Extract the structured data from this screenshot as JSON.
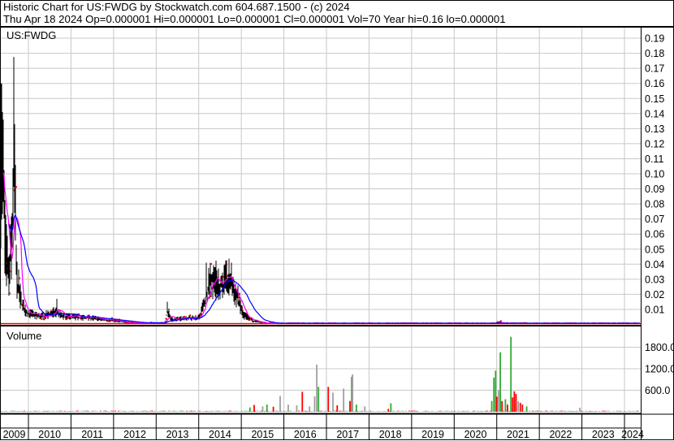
{
  "header": {
    "title": "Historic Chart for US:FWDG by Stockwatch.com 604.687.1500 - (c) 2024",
    "quote": "Thu Apr 18 2024   Op=0.000001  Hi=0.000001  Lo=0.000001  Cl=0.000001  Vol=70   Year hi=0.16   lo=0.000001"
  },
  "colors": {
    "bars": "#000000",
    "close_marks": "#ff0000",
    "ma_short": "#ff00ff",
    "ma_long": "#0000ff",
    "vol_up": "#33aa33",
    "vol_down": "#ff0000",
    "vol_flat": "#a0a0a0",
    "grid": "#c8c8c8"
  },
  "chart_data": [
    {
      "type": "line",
      "title": "US:FWDG",
      "xlim": [
        2009.33,
        2024.36
      ],
      "ylim": [
        0,
        0.2
      ],
      "grid": true,
      "y_ticks": [
        "0.01",
        "0.02",
        "0.03",
        "0.04",
        "0.05",
        "0.06",
        "0.07",
        "0.08",
        "0.09",
        "0.10",
        "0.11",
        "0.12",
        "0.13",
        "0.14",
        "0.15",
        "0.16",
        "0.17",
        "0.18",
        "0.19"
      ],
      "close": [
        [
          2009.33,
          0.08
        ],
        [
          2009.4,
          0.1
        ],
        [
          2009.45,
          0.05
        ],
        [
          2009.55,
          0.03
        ],
        [
          2009.62,
          0.06
        ],
        [
          2009.66,
          0.12
        ],
        [
          2009.72,
          0.03
        ],
        [
          2009.85,
          0.012
        ],
        [
          2010.0,
          0.007
        ],
        [
          2010.3,
          0.005
        ],
        [
          2010.67,
          0.008
        ],
        [
          2010.8,
          0.005
        ],
        [
          2011.5,
          0.004
        ],
        [
          2012.0,
          0.0025
        ],
        [
          2012.5,
          0.001
        ],
        [
          2013.2,
          0.001
        ],
        [
          2013.27,
          0.009
        ],
        [
          2013.35,
          0.003
        ],
        [
          2013.7,
          0.004
        ],
        [
          2014.0,
          0.004
        ],
        [
          2014.15,
          0.015
        ],
        [
          2014.25,
          0.03
        ],
        [
          2014.5,
          0.025
        ],
        [
          2014.75,
          0.028
        ],
        [
          2014.9,
          0.018
        ],
        [
          2015.05,
          0.006
        ],
        [
          2015.3,
          0.002
        ],
        [
          2015.6,
          0.0008
        ],
        [
          2016.0,
          0.0004
        ],
        [
          2020.95,
          0.0004
        ],
        [
          2021.0,
          0.0015
        ],
        [
          2021.15,
          0.0008
        ],
        [
          2024.36,
          1e-06
        ]
      ],
      "spikes": [
        [
          2009.36,
          0.16
        ],
        [
          2009.66,
          0.15
        ],
        [
          2010.67,
          0.017
        ],
        [
          2013.26,
          0.015
        ],
        [
          2014.18,
          0.041
        ],
        [
          2014.38,
          0.038
        ],
        [
          2021.08,
          0.0025
        ]
      ]
    },
    {
      "type": "bar",
      "title": "Volume",
      "ylim": [
        0,
        2200
      ],
      "y_ticks": [
        "600.0",
        "1200.0",
        "1800.0"
      ],
      "bars": [
        {
          "x": 2015.2,
          "v": 120,
          "c": "up"
        },
        {
          "x": 2015.3,
          "v": 190,
          "c": "down"
        },
        {
          "x": 2015.5,
          "v": 150,
          "c": "flat"
        },
        {
          "x": 2015.6,
          "v": 200,
          "c": "up"
        },
        {
          "x": 2015.75,
          "v": 140,
          "c": "down"
        },
        {
          "x": 2015.91,
          "v": 440,
          "c": "flat"
        },
        {
          "x": 2016.1,
          "v": 200,
          "c": "flat"
        },
        {
          "x": 2016.3,
          "v": 180,
          "c": "flat"
        },
        {
          "x": 2016.43,
          "v": 555,
          "c": "down"
        },
        {
          "x": 2016.6,
          "v": 150,
          "c": "flat"
        },
        {
          "x": 2016.72,
          "v": 430,
          "c": "flat"
        },
        {
          "x": 2016.77,
          "v": 1315,
          "c": "flat"
        },
        {
          "x": 2016.81,
          "v": 692,
          "c": "up"
        },
        {
          "x": 2017.04,
          "v": 692,
          "c": "down"
        },
        {
          "x": 2017.15,
          "v": 532,
          "c": "flat"
        },
        {
          "x": 2017.25,
          "v": 180,
          "c": "down"
        },
        {
          "x": 2017.4,
          "v": 646,
          "c": "flat"
        },
        {
          "x": 2017.59,
          "v": 973,
          "c": "up"
        },
        {
          "x": 2017.61,
          "v": 1041,
          "c": "flat"
        },
        {
          "x": 2017.55,
          "v": 300,
          "c": "down"
        },
        {
          "x": 2017.7,
          "v": 200,
          "c": "up"
        },
        {
          "x": 2017.9,
          "v": 150,
          "c": "flat"
        },
        {
          "x": 2018.51,
          "v": 236,
          "c": "up"
        },
        {
          "x": 2018.45,
          "v": 80,
          "c": "down"
        },
        {
          "x": 2020.88,
          "v": 300,
          "c": "up"
        },
        {
          "x": 2020.93,
          "v": 950,
          "c": "up"
        },
        {
          "x": 2020.97,
          "v": 1148,
          "c": "up"
        },
        {
          "x": 2021.0,
          "v": 420,
          "c": "down"
        },
        {
          "x": 2021.04,
          "v": 600,
          "c": "flat"
        },
        {
          "x": 2021.08,
          "v": 1657,
          "c": "up"
        },
        {
          "x": 2021.12,
          "v": 300,
          "c": "down"
        },
        {
          "x": 2021.2,
          "v": 350,
          "c": "up"
        },
        {
          "x": 2021.25,
          "v": 200,
          "c": "down"
        },
        {
          "x": 2021.33,
          "v": 2090,
          "c": "up"
        },
        {
          "x": 2021.37,
          "v": 400,
          "c": "down"
        },
        {
          "x": 2021.41,
          "v": 570,
          "c": "down"
        },
        {
          "x": 2021.45,
          "v": 494,
          "c": "down"
        },
        {
          "x": 2021.5,
          "v": 300,
          "c": "flat"
        },
        {
          "x": 2021.55,
          "v": 250,
          "c": "down"
        },
        {
          "x": 2021.6,
          "v": 200,
          "c": "down"
        },
        {
          "x": 2021.7,
          "v": 150,
          "c": "up"
        },
        {
          "x": 2022.95,
          "v": 114,
          "c": "flat"
        }
      ]
    }
  ],
  "x_axis": {
    "years": [
      "2009",
      "2010",
      "2011",
      "2012",
      "2013",
      "2014",
      "2015",
      "2016",
      "2017",
      "2018",
      "2019",
      "2020",
      "2021",
      "2022",
      "2023",
      "2024"
    ]
  }
}
